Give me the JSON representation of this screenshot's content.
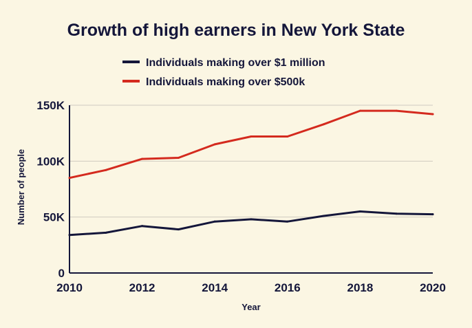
{
  "chart_data": {
    "type": "line",
    "title": "Growth of high earners in New York State",
    "xlabel": "Year",
    "ylabel": "Number of people",
    "x": [
      2010,
      2011,
      2012,
      2013,
      2014,
      2015,
      2016,
      2017,
      2018,
      2019,
      2020
    ],
    "xticks": [
      2010,
      2012,
      2014,
      2016,
      2018,
      2020
    ],
    "xtick_labels": [
      "2010",
      "2012",
      "2014",
      "2016",
      "2018",
      "2020"
    ],
    "yticks": [
      0,
      50000,
      100000,
      150000
    ],
    "ytick_labels": [
      "0",
      "50K",
      "100K",
      "150K"
    ],
    "ylim": [
      0,
      150000
    ],
    "xlim": [
      2010,
      2020
    ],
    "grid": "horizontal",
    "legend_position": "top",
    "series": [
      {
        "name": "Individuals making over $1 million",
        "color": "#14163A",
        "values": [
          34000,
          36000,
          42000,
          39000,
          46000,
          48000,
          46000,
          51000,
          55000,
          53000,
          52500
        ]
      },
      {
        "name": "Individuals making over $500k",
        "color": "#D42A1E",
        "values": [
          85000,
          92000,
          102000,
          103000,
          115000,
          122000,
          122000,
          133000,
          145000,
          145000,
          142000
        ]
      }
    ]
  }
}
